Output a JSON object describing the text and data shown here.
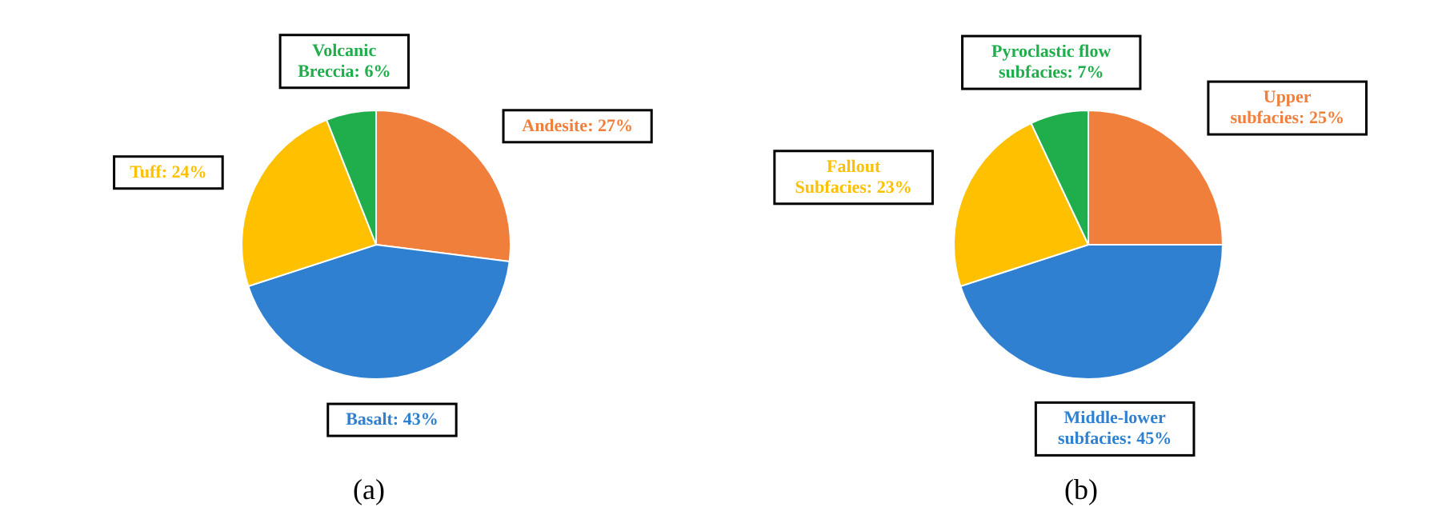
{
  "chart_data": [
    {
      "type": "pie",
      "title": "(a)",
      "categories": [
        "Andesite",
        "Basalt",
        "Tuff",
        "Volcanic Breccia"
      ],
      "values": [
        27,
        43,
        24,
        6
      ],
      "value_labels": [
        "27%",
        "43%",
        "24%",
        "6%"
      ],
      "colors": [
        "#f07f3c",
        "#2f80d0",
        "#ffc000",
        "#1fae4b"
      ]
    },
    {
      "type": "pie",
      "title": "(b)",
      "categories": [
        "Upper subfacies",
        "Middle-lower subfacies",
        "Fallout Subfacies",
        "Pyroclastic flow subfacies"
      ],
      "values": [
        25,
        45,
        23,
        7
      ],
      "value_labels": [
        "25%",
        "45%",
        "23%",
        "7%"
      ],
      "colors": [
        "#f07f3c",
        "#2f80d0",
        "#ffc000",
        "#1fae4b"
      ]
    }
  ]
}
